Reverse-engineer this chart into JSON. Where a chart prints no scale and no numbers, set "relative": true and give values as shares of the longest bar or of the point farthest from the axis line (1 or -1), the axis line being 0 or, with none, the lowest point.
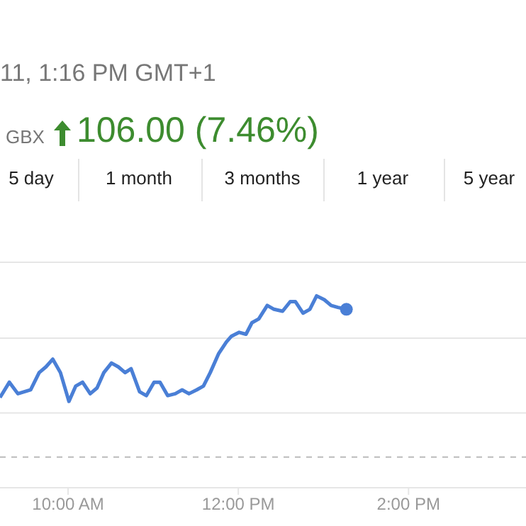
{
  "chart_data": {
    "type": "line",
    "subtitle": "11, 1:16 PM GMT+1",
    "annotations": [
      "GBX",
      "106.00 (7.46%)",
      "5 day",
      "1 month",
      "3 months",
      "1 year",
      "5 year"
    ],
    "relative": true,
    "line_style": "solid",
    "xlim": [
      9.2,
      15.38
    ],
    "xticks": [
      {
        "value": 10,
        "label": "10:00 AM"
      },
      {
        "value": 12,
        "label": "12:00 PM"
      },
      {
        "value": 14,
        "label": "2:00 PM"
      }
    ],
    "ref_lines": [
      {
        "axis": "y",
        "value": 0.16,
        "label": null,
        "color": "#bbbbbb",
        "line_style": "dashed"
      },
      {
        "axis": "y",
        "value": 0.39,
        "label": null,
        "color": "#e6e6e6",
        "line_style": "solid"
      },
      {
        "axis": "y",
        "value": 0.78,
        "label": null,
        "color": "#e6e6e6",
        "line_style": "solid"
      }
    ],
    "series": [
      {
        "color": "#4a7fd6",
        "x": [
          9.2,
          9.31,
          9.41,
          9.56,
          9.66,
          9.74,
          9.82,
          9.91,
          10.01,
          10.09,
          10.17,
          10.26,
          10.34,
          10.42,
          10.51,
          10.59,
          10.67,
          10.74,
          10.84,
          10.92,
          11.01,
          11.08,
          11.17,
          11.26,
          11.34,
          11.42,
          11.51,
          11.59,
          11.67,
          11.77,
          11.86,
          11.92,
          12.01,
          12.09,
          12.16,
          12.24,
          12.34,
          12.42,
          12.52,
          12.61,
          12.67,
          12.76,
          12.84,
          12.92,
          13.01,
          13.09,
          13.17,
          13.27
        ],
        "values": [
          0.47,
          0.55,
          0.49,
          0.51,
          0.6,
          0.63,
          0.67,
          0.6,
          0.45,
          0.53,
          0.55,
          0.49,
          0.52,
          0.6,
          0.65,
          0.63,
          0.6,
          0.62,
          0.5,
          0.48,
          0.55,
          0.55,
          0.48,
          0.49,
          0.51,
          0.49,
          0.51,
          0.53,
          0.6,
          0.7,
          0.76,
          0.79,
          0.81,
          0.8,
          0.86,
          0.88,
          0.95,
          0.93,
          0.92,
          0.97,
          0.97,
          0.91,
          0.93,
          1,
          0.98,
          0.95,
          0.94,
          0.93
        ]
      }
    ]
  }
}
